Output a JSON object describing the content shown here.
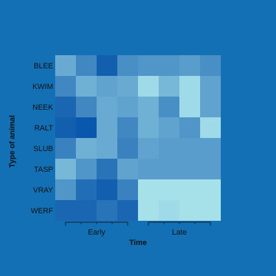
{
  "colors": {
    "background": "#1370b5",
    "low": "#0a58ad",
    "high": "#a6e1ea",
    "bracket": "#1a2a40",
    "text": "#111111"
  },
  "chart_data": {
    "type": "heatmap",
    "title": "",
    "xlabel": "Time",
    "ylabel": "Type of animal",
    "rows": [
      "BLEE",
      "KWIM",
      "NEEK",
      "RALT",
      "SLUB",
      "TASP",
      "VRAY",
      "WERF"
    ],
    "column_groups": [
      {
        "label": "Early",
        "columns": 4
      },
      {
        "label": "Late",
        "columns": 4
      }
    ],
    "values": [
      [
        0.6,
        0.35,
        0.05,
        0.4,
        0.45,
        0.45,
        0.5,
        0.4
      ],
      [
        0.35,
        0.65,
        0.55,
        0.6,
        0.95,
        0.7,
        0.95,
        0.55
      ],
      [
        0.1,
        0.35,
        0.6,
        0.55,
        0.65,
        0.4,
        0.95,
        0.55
      ],
      [
        0.05,
        0.0,
        0.6,
        0.35,
        0.65,
        0.55,
        0.45,
        0.95
      ],
      [
        0.3,
        0.65,
        0.6,
        0.3,
        0.55,
        0.5,
        0.5,
        0.5
      ],
      [
        0.7,
        0.45,
        0.2,
        0.55,
        0.5,
        0.5,
        0.5,
        0.5
      ],
      [
        0.45,
        0.15,
        0.05,
        0.3,
        1.0,
        1.0,
        1.0,
        1.0
      ],
      [
        0.1,
        0.1,
        0.2,
        0.1,
        1.0,
        0.95,
        1.0,
        1.0
      ]
    ],
    "value_range": [
      0,
      1
    ],
    "legend": "none",
    "grid": false
  }
}
